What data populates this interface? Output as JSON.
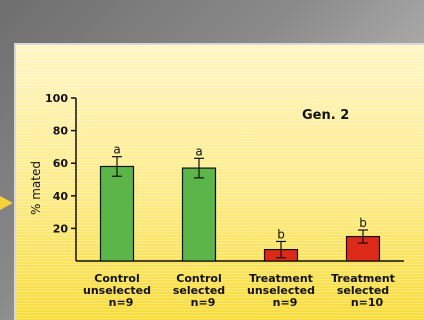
{
  "chart_data": {
    "type": "bar",
    "title": "Gen. 2",
    "ylabel": "% mated",
    "xlabel": "",
    "ylim": [
      0,
      100
    ],
    "yticks": [
      20,
      40,
      60,
      80,
      100
    ],
    "grid": false,
    "categories": [
      [
        "Control",
        "unselected",
        "n=9"
      ],
      [
        "Control",
        "selected",
        "n=9"
      ],
      [
        "Treatment",
        "unselected",
        "n=9"
      ],
      [
        "Treatment",
        "selected",
        "n=10"
      ]
    ],
    "values": [
      58,
      57,
      7,
      15
    ],
    "errors": [
      6,
      6,
      5,
      4
    ],
    "significance_letters": [
      "a",
      "a",
      "b",
      "b"
    ],
    "bar_colors": [
      "#5bb548",
      "#5bb548",
      "#dd2a18",
      "#dd2a18"
    ]
  }
}
